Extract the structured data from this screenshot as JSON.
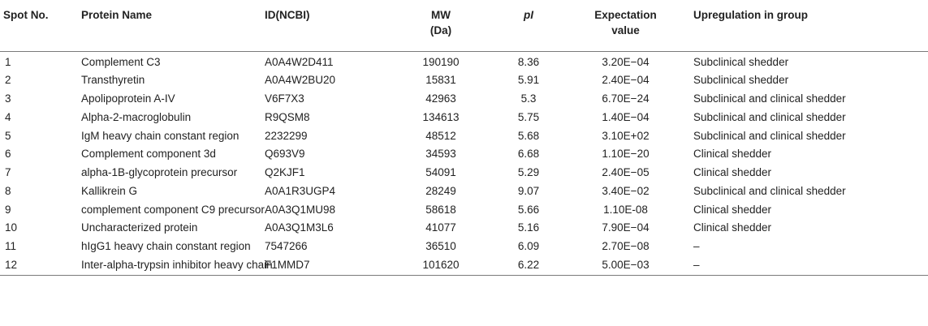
{
  "headers": [
    "Spot No.",
    "Protein Name",
    "ID(NCBI)",
    "MW",
    "(Da)",
    "pI",
    "Expectation",
    "value",
    "Upregulation in group"
  ],
  "rows": [
    {
      "spot": "1",
      "name": "Complement C3",
      "id": "A0A4W2D411",
      "mw": "190190",
      "pi": "8.36",
      "exp": "3.20E−04",
      "group": "Subclinical shedder"
    },
    {
      "spot": "2",
      "name": "Transthyretin",
      "id": "A0A4W2BU20",
      "mw": "15831",
      "pi": "5.91",
      "exp": "2.40E−04",
      "group": "Subclinical shedder"
    },
    {
      "spot": "3",
      "name": "Apolipoprotein A-IV",
      "id": "V6F7X3",
      "mw": "42963",
      "pi": "5.3",
      "exp": "6.70E−24",
      "group": "Subclinical and clinical shedder"
    },
    {
      "spot": "4",
      "name": "Alpha-2-macroglobulin",
      "id": "R9QSM8",
      "mw": "134613",
      "pi": "5.75",
      "exp": "1.40E−04",
      "group": "Subclinical and clinical shedder"
    },
    {
      "spot": "5",
      "name": "IgM heavy chain constant region",
      "id": "2232299",
      "mw": "48512",
      "pi": "5.68",
      "exp": "3.10E+02",
      "group": "Subclinical and clinical shedder"
    },
    {
      "spot": "6",
      "name": "Complement component 3d",
      "id": "Q693V9",
      "mw": "34593",
      "pi": "6.68",
      "exp": "1.10E−20",
      "group": "Clinical shedder"
    },
    {
      "spot": "7",
      "name": "alpha-1B-glycoprotein precursor",
      "id": "Q2KJF1",
      "mw": "54091",
      "pi": "5.29",
      "exp": "2.40E−05",
      "group": "Clinical shedder"
    },
    {
      "spot": "8",
      "name": "Kallikrein G",
      "id": "A0A1R3UGP4",
      "mw": "28249",
      "pi": "9.07",
      "exp": "3.40E−02",
      "group": "Subclinical and clinical shedder"
    },
    {
      "spot": "9",
      "name": "complement component C9 precursor",
      "id": "A0A3Q1MU98",
      "mw": "58618",
      "pi": "5.66",
      "exp": "1.10E-08",
      "group": "Clinical shedder"
    },
    {
      "spot": "10",
      "name": "Uncharacterized protein",
      "id": "A0A3Q1M3L6",
      "mw": "41077",
      "pi": "5.16",
      "exp": "7.90E−04",
      "group": "Clinical shedder"
    },
    {
      "spot": "11",
      "name": "hIgG1 heavy chain constant region",
      "id": "7547266",
      "mw": "36510",
      "pi": "6.09",
      "exp": "2.70E−08",
      "group": "–"
    },
    {
      "spot": "12",
      "name": "Inter-alpha-trypsin inhibitor heavy chain",
      "id": "F1MMD7",
      "mw": "101620",
      "pi": "6.22",
      "exp": "5.00E−03",
      "group": "–"
    }
  ]
}
